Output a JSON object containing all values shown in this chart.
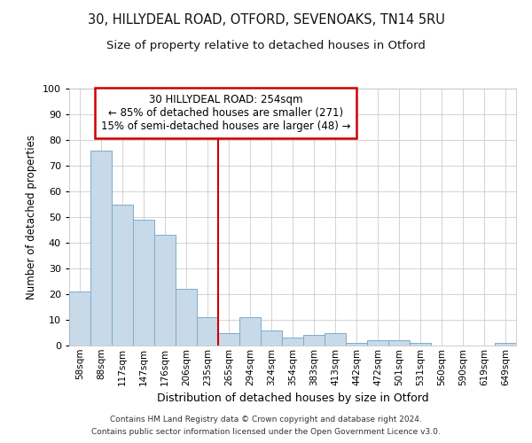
{
  "title1": "30, HILLYDEAL ROAD, OTFORD, SEVENOAKS, TN14 5RU",
  "title2": "Size of property relative to detached houses in Otford",
  "xlabel": "Distribution of detached houses by size in Otford",
  "ylabel": "Number of detached properties",
  "categories": [
    "58sqm",
    "88sqm",
    "117sqm",
    "147sqm",
    "176sqm",
    "206sqm",
    "235sqm",
    "265sqm",
    "294sqm",
    "324sqm",
    "354sqm",
    "383sqm",
    "413sqm",
    "442sqm",
    "472sqm",
    "501sqm",
    "531sqm",
    "560sqm",
    "590sqm",
    "619sqm",
    "649sqm"
  ],
  "values": [
    21,
    76,
    55,
    49,
    43,
    22,
    11,
    5,
    11,
    6,
    3,
    4,
    5,
    1,
    2,
    2,
    1,
    0,
    0,
    0,
    1
  ],
  "bar_color": "#c8d9ea",
  "bar_edge_color": "#7aaec8",
  "vline_x": 6.5,
  "vline_color": "#cc0000",
  "annotation_title": "30 HILLYDEAL ROAD: 254sqm",
  "annotation_line1": "← 85% of detached houses are smaller (271)",
  "annotation_line2": "15% of semi-detached houses are larger (48) →",
  "annotation_box_color": "#ffffff",
  "annotation_box_edge": "#cc0000",
  "footer1": "Contains HM Land Registry data © Crown copyright and database right 2024.",
  "footer2": "Contains public sector information licensed under the Open Government Licence v3.0.",
  "ylim": [
    0,
    100
  ],
  "background_color": "#ffffff",
  "plot_bg_color": "#ffffff"
}
